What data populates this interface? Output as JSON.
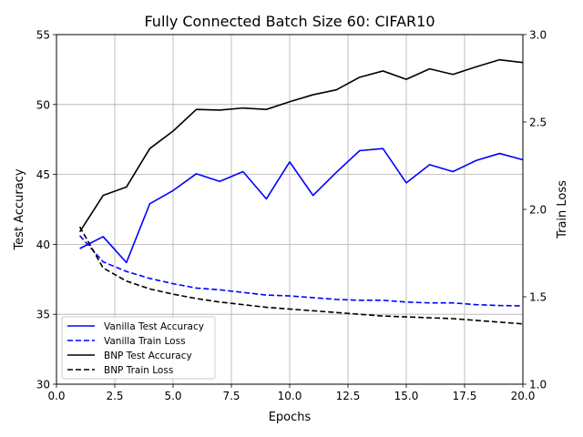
{
  "chart_data": {
    "type": "line",
    "title": "Fully Connected Batch Size 60: CIFAR10",
    "xlabel": "Epochs",
    "ylabel_left": "Test Accuracy",
    "ylabel_right": "Train Loss",
    "xlim": [
      0.0,
      20.0
    ],
    "ylim_left": [
      30,
      55
    ],
    "ylim_right": [
      1.0,
      3.0
    ],
    "x_ticks": [
      "0.0",
      "2.5",
      "5.0",
      "7.5",
      "10.0",
      "12.5",
      "15.0",
      "17.5",
      "20.0"
    ],
    "y_ticks_left": [
      "30",
      "35",
      "40",
      "45",
      "50",
      "55"
    ],
    "y_ticks_right": [
      "1.0",
      "1.5",
      "2.0",
      "2.5",
      "3.0"
    ],
    "grid": true,
    "legend_position": "bottom-left",
    "x": [
      1,
      2,
      3,
      4,
      5,
      6,
      7,
      8,
      9,
      10,
      11,
      12,
      13,
      14,
      15,
      16,
      17,
      18,
      19,
      20
    ],
    "series": [
      {
        "name": "Vanilla Test Accuracy",
        "axis": "left",
        "color": "#0000ff",
        "style": "solid",
        "values": [
          39.7,
          40.55,
          38.7,
          42.9,
          43.85,
          45.05,
          44.5,
          45.2,
          43.25,
          45.9,
          43.5,
          45.15,
          46.7,
          46.85,
          44.4,
          45.7,
          45.2,
          46.0,
          46.5,
          46.05
        ]
      },
      {
        "name": "Vanilla Train Loss",
        "axis": "right",
        "color": "#0000ff",
        "style": "dashed",
        "values": [
          1.85,
          1.7,
          1.645,
          1.605,
          1.575,
          1.55,
          1.54,
          1.525,
          1.51,
          1.505,
          1.495,
          1.485,
          1.48,
          1.48,
          1.47,
          1.465,
          1.465,
          1.455,
          1.45,
          1.448
        ]
      },
      {
        "name": "BNP Test Accuracy",
        "axis": "left",
        "color": "#000000",
        "style": "solid",
        "values": [
          40.9,
          43.5,
          44.1,
          46.85,
          48.1,
          49.65,
          49.6,
          49.75,
          49.65,
          50.2,
          50.7,
          51.05,
          51.95,
          52.4,
          51.8,
          52.55,
          52.15,
          52.7,
          53.2,
          53.0
        ]
      },
      {
        "name": "BNP Train Loss",
        "axis": "right",
        "color": "#000000",
        "style": "dashed",
        "values": [
          1.9,
          1.665,
          1.59,
          1.545,
          1.515,
          1.49,
          1.47,
          1.455,
          1.44,
          1.43,
          1.42,
          1.41,
          1.4,
          1.39,
          1.385,
          1.38,
          1.375,
          1.365,
          1.355,
          1.345
        ]
      }
    ]
  }
}
